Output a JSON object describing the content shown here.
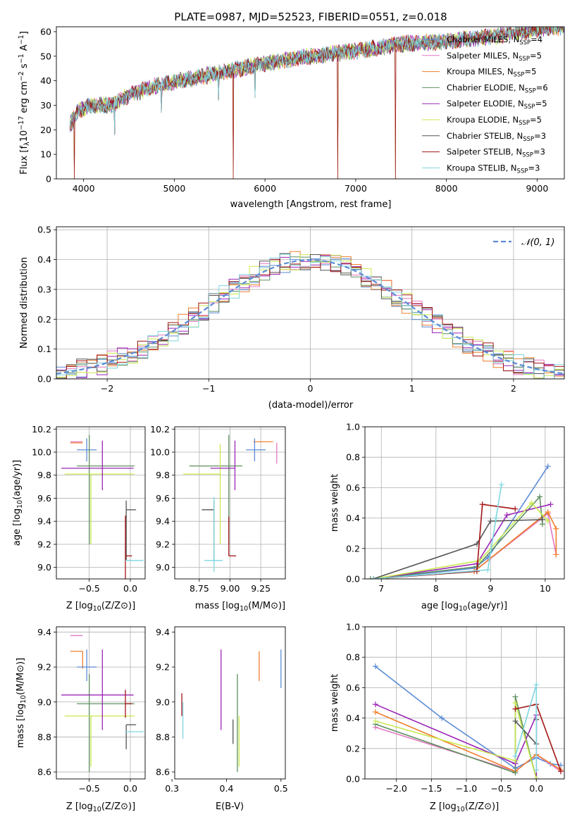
{
  "colors": {
    "chabrier_miles": "#5b8bd5",
    "salpeter_miles": "#e377c2",
    "kroupa_miles": "#ef7f2b",
    "chabrier_elodie": "#5f8f5f",
    "salpeter_elodie": "#9b26b6",
    "kroupa_elodie": "#c9e84f",
    "chabrier_stelib": "#555555",
    "salpeter_stelib": "#a31515",
    "kroupa_stelib": "#7fd6e0",
    "normal": "#5b8bd5"
  },
  "chart_data": [
    {
      "id": "spectrum",
      "type": "line",
      "title": "PLATE=0987, MJD=52523, FIBERID=0551, z=0.018",
      "xlabel": "wavelength [Angstrom, rest frame]",
      "ylabel": "Flux [fλ10⁻¹⁷ erg cm⁻² s⁻¹ A⁻¹]",
      "xlim": [
        3700,
        9300
      ],
      "ylim": [
        0,
        62
      ],
      "xticks": [
        4000,
        5000,
        6000,
        7000,
        8000,
        9000
      ],
      "yticks": [
        0,
        10,
        20,
        30,
        40,
        50,
        60
      ],
      "grid": false,
      "legend_position": "upper-right",
      "series": [
        {
          "name": "Chabrier MILES, N_SSP=4",
          "label_main": "Chabrier MILES, N",
          "label_sub": "SSP",
          "label_end": "=4"
        },
        {
          "name": "Salpeter MILES, N_SSP=5",
          "label_main": "Salpeter MILES, N",
          "label_sub": "SSP",
          "label_end": "=5"
        },
        {
          "name": "Kroupa MILES, N_SSP=5",
          "label_main": "Kroupa MILES, N",
          "label_sub": "SSP",
          "label_end": "=5"
        },
        {
          "name": "Chabrier ELODIE, N_SSP=6",
          "label_main": "Chabrier ELODIE, N",
          "label_sub": "SSP",
          "label_end": "=6"
        },
        {
          "name": "Salpeter ELODIE, N_SSP=5",
          "label_main": "Salpeter ELODIE, N",
          "label_sub": "SSP",
          "label_end": "=5"
        },
        {
          "name": "Kroupa ELODIE, N_SSP=5",
          "label_main": "Kroupa ELODIE, N",
          "label_sub": "SSP",
          "label_end": "=5"
        },
        {
          "name": "Chabrier STELIB, N_SSP=3",
          "label_main": "Chabrier STELIB, N",
          "label_sub": "SSP",
          "label_end": "=3"
        },
        {
          "name": "Salpeter STELIB, N_SSP=3",
          "label_main": "Salpeter STELIB, N",
          "label_sub": "SSP",
          "label_end": "=3"
        },
        {
          "name": "Kroupa STELIB, N_SSP=3",
          "label_main": "Kroupa STELIB, N",
          "label_sub": "SSP",
          "label_end": "=3"
        }
      ],
      "continuum": {
        "x": [
          3850,
          3950,
          4100,
          4300,
          4500,
          4800,
          5200,
          5600,
          6000,
          6500,
          7000,
          7500,
          8000,
          8500,
          9000,
          9300
        ],
        "y": [
          22,
          28,
          30,
          30,
          34,
          38,
          41,
          44,
          47,
          50,
          52,
          55,
          56,
          58,
          61,
          62
        ]
      },
      "dips": [
        {
          "x": 3900,
          "y": 0
        },
        {
          "x": 4340,
          "y": 15
        },
        {
          "x": 4860,
          "y": 24
        },
        {
          "x": 5490,
          "y": 29
        },
        {
          "x": 5650,
          "y": 0
        },
        {
          "x": 5890,
          "y": 30
        },
        {
          "x": 6800,
          "y": 0
        },
        {
          "x": 7440,
          "y": 0
        }
      ]
    },
    {
      "id": "residuals",
      "type": "step",
      "xlabel": "(data-model)/error",
      "ylabel": "Normed distribution",
      "xlim": [
        -2.5,
        2.5
      ],
      "ylim": [
        0,
        0.51
      ],
      "xticks": [
        -2,
        -1,
        0,
        1,
        2
      ],
      "yticks": [
        0.0,
        0.1,
        0.2,
        0.3,
        0.4,
        0.5
      ],
      "grid": true,
      "legend_position": "upper-right",
      "legend": "N(0,1)",
      "normal_curve": {
        "mean": 0,
        "sigma": 1
      }
    },
    {
      "id": "age_vs_Z",
      "type": "errorbar",
      "xlabel_main": "Z [log",
      "xlabel_sub": "10",
      "xlabel_end": "(Z/Z⊙)]",
      "ylabel": "age  [log10(age/yr)]",
      "xlim": [
        -0.9,
        0.18
      ],
      "ylim": [
        8.9,
        10.22
      ],
      "xticks": [
        -0.5,
        0.0
      ],
      "yticks": [
        9.0,
        9.2,
        9.4,
        9.6,
        9.8,
        10.0,
        10.2
      ],
      "grid": true,
      "points": [
        {
          "s": "salpeter_miles",
          "x": -0.58,
          "xerr": [
            0.15,
            0.0
          ],
          "y": 10.09,
          "yerr": [
            0.0,
            0.0
          ]
        },
        {
          "s": "kroupa_miles",
          "x": -0.58,
          "xerr": [
            0.15,
            0.0
          ],
          "y": 10.08,
          "yerr": [
            0.0,
            0.0
          ]
        },
        {
          "s": "chabrier_miles",
          "x": -0.53,
          "xerr": [
            0.12,
            0.12
          ],
          "y": 10.02,
          "yerr": [
            0.1,
            0.1
          ]
        },
        {
          "s": "chabrier_elodie",
          "x": -0.5,
          "xerr": [
            0.15,
            0.55
          ],
          "y": 9.88,
          "yerr": [
            0.68,
            0.27
          ]
        },
        {
          "s": "kroupa_elodie",
          "x": -0.48,
          "xerr": [
            0.32,
            0.53
          ],
          "y": 9.81,
          "yerr": [
            0.61,
            0.0
          ]
        },
        {
          "s": "salpeter_elodie",
          "x": -0.34,
          "xerr": [
            0.5,
            0.38
          ],
          "y": 9.86,
          "yerr": [
            0.19,
            0.24
          ]
        },
        {
          "s": "chabrier_stelib",
          "x": -0.05,
          "xerr": [
            0.0,
            0.12
          ],
          "y": 9.5,
          "yerr": [
            0.44,
            0.08
          ]
        },
        {
          "s": "salpeter_stelib",
          "x": -0.06,
          "xerr": [
            0.0,
            0.08
          ],
          "y": 9.1,
          "yerr": [
            0.2,
            0.35
          ]
        },
        {
          "s": "kroupa_stelib",
          "x": 0.04,
          "xerr": [
            0.1,
            0.12
          ],
          "y": 9.06,
          "yerr": [
            0.0,
            0.0
          ]
        }
      ]
    },
    {
      "id": "age_vs_mass",
      "type": "errorbar",
      "xlabel_main": "mass [log",
      "xlabel_sub": "10",
      "xlabel_end": "(M/M⊙)]",
      "xlim": [
        8.55,
        9.45
      ],
      "ylim": [
        8.9,
        10.22
      ],
      "xticks": [
        8.75,
        9.0,
        9.25
      ],
      "yticks": [
        9.0,
        9.2,
        9.4,
        9.6,
        9.8,
        10.0,
        10.2
      ],
      "grid": true,
      "points": [
        {
          "s": "salpeter_miles",
          "x": 9.38,
          "xerr": [
            0.0,
            0.0
          ],
          "y": 10.08,
          "yerr": [
            0.18,
            0.0
          ]
        },
        {
          "s": "kroupa_miles",
          "x": 9.29,
          "xerr": [
            0.1,
            0.06
          ],
          "y": 10.09,
          "yerr": [
            0.0,
            0.0
          ]
        },
        {
          "s": "chabrier_miles",
          "x": 9.2,
          "xerr": [
            0.07,
            0.09
          ],
          "y": 10.02,
          "yerr": [
            0.1,
            0.1
          ]
        },
        {
          "s": "chabrier_elodie",
          "x": 8.99,
          "xerr": [
            0.32,
            0.11
          ],
          "y": 9.88,
          "yerr": [
            0.68,
            0.27
          ]
        },
        {
          "s": "kroupa_elodie",
          "x": 8.92,
          "xerr": [
            0.3,
            0.0
          ],
          "y": 9.81,
          "yerr": [
            0.61,
            0.26
          ]
        },
        {
          "s": "salpeter_elodie",
          "x": 9.04,
          "xerr": [
            0.2,
            0.0
          ],
          "y": 9.86,
          "yerr": [
            0.19,
            0.24
          ]
        },
        {
          "s": "chabrier_stelib",
          "x": 8.87,
          "xerr": [
            0.1,
            0.0
          ],
          "y": 9.5,
          "yerr": [
            0.44,
            0.08
          ]
        },
        {
          "s": "salpeter_stelib",
          "x": 8.99,
          "xerr": [
            0.0,
            0.06
          ],
          "y": 9.1,
          "yerr": [
            0.0,
            0.34
          ]
        },
        {
          "s": "kroupa_stelib",
          "x": 8.87,
          "xerr": [
            0.08,
            0.07
          ],
          "y": 9.06,
          "yerr": [
            0.1,
            0.55
          ]
        }
      ]
    },
    {
      "id": "weight_vs_age",
      "type": "line",
      "xlabel": "age  [log10(age/yr)]",
      "ylabel": "mass weight",
      "xlim": [
        6.7,
        10.35
      ],
      "ylim": [
        0.0,
        1.0
      ],
      "xticks": [
        7,
        8,
        9,
        10
      ],
      "yticks": [
        0.0,
        0.2,
        0.4,
        0.6,
        0.8,
        1.0
      ],
      "grid": true,
      "series": [
        {
          "s": "chabrier_miles",
          "x": [
            6.85,
            8.7,
            8.95,
            10.05
          ],
          "y": [
            0.0,
            0.07,
            0.14,
            0.74
          ]
        },
        {
          "s": "salpeter_miles",
          "x": [
            6.85,
            8.7,
            10.05,
            10.2
          ],
          "y": [
            0.0,
            0.05,
            0.43,
            0.16
          ]
        },
        {
          "s": "kroupa_miles",
          "x": [
            6.85,
            8.7,
            10.05,
            10.2,
            10.2
          ],
          "y": [
            0.0,
            0.05,
            0.44,
            0.33,
            0.16
          ]
        },
        {
          "s": "chabrier_elodie",
          "x": [
            6.8,
            8.75,
            9.9,
            9.95
          ],
          "y": [
            0.0,
            0.08,
            0.54,
            0.36
          ]
        },
        {
          "s": "salpeter_elodie",
          "x": [
            6.85,
            8.75,
            9.3,
            10.1
          ],
          "y": [
            0.0,
            0.1,
            0.42,
            0.49
          ]
        },
        {
          "s": "kroupa_elodie",
          "x": [
            6.85,
            8.8,
            9.75,
            10.05
          ],
          "y": [
            0.0,
            0.12,
            0.5,
            0.38
          ]
        },
        {
          "s": "chabrier_stelib",
          "x": [
            6.85,
            8.75,
            9.0,
            9.95
          ],
          "y": [
            0.0,
            0.23,
            0.38,
            0.39
          ]
        },
        {
          "s": "salpeter_stelib",
          "x": [
            6.85,
            8.75,
            8.85,
            9.45
          ],
          "y": [
            0.0,
            0.05,
            0.49,
            0.46
          ]
        },
        {
          "s": "kroupa_stelib",
          "x": [
            6.85,
            8.95,
            9.1,
            9.2
          ],
          "y": [
            0.0,
            0.06,
            0.4,
            0.62
          ]
        }
      ]
    },
    {
      "id": "mass_vs_Z",
      "type": "errorbar",
      "xlabel_main": "Z [log",
      "xlabel_sub": "10",
      "xlabel_end": "(Z/Z⊙)]",
      "ylabel": "mass [log10(M/M⊙)]",
      "xlim": [
        -0.9,
        0.18
      ],
      "ylim": [
        8.56,
        9.43
      ],
      "xticks": [
        -0.5,
        0.0
      ],
      "yticks": [
        8.6,
        8.8,
        9.0,
        9.2,
        9.4
      ],
      "grid": true,
      "points": [
        {
          "s": "salpeter_miles",
          "x": -0.58,
          "xerr": [
            0.15,
            0.0
          ],
          "y": 9.38,
          "yerr": [
            0.0,
            0.0
          ]
        },
        {
          "s": "kroupa_miles",
          "x": -0.58,
          "xerr": [
            0.15,
            0.0
          ],
          "y": 9.29,
          "yerr": [
            0.1,
            0.0
          ]
        },
        {
          "s": "chabrier_miles",
          "x": -0.53,
          "xerr": [
            0.12,
            0.12
          ],
          "y": 9.2,
          "yerr": [
            0.08,
            0.1
          ]
        },
        {
          "s": "chabrier_elodie",
          "x": -0.5,
          "xerr": [
            0.15,
            0.55
          ],
          "y": 8.99,
          "yerr": [
            0.39,
            0.17
          ]
        },
        {
          "s": "kroupa_elodie",
          "x": -0.48,
          "xerr": [
            0.32,
            0.53
          ],
          "y": 8.92,
          "yerr": [
            0.29,
            0.0
          ]
        },
        {
          "s": "salpeter_elodie",
          "x": -0.34,
          "xerr": [
            0.5,
            0.38
          ],
          "y": 9.04,
          "yerr": [
            0.2,
            0.26
          ]
        },
        {
          "s": "chabrier_stelib",
          "x": -0.05,
          "xerr": [
            0.0,
            0.12
          ],
          "y": 8.87,
          "yerr": [
            0.14,
            0.0
          ]
        },
        {
          "s": "salpeter_stelib",
          "x": -0.06,
          "xerr": [
            0.0,
            0.08
          ],
          "y": 8.99,
          "yerr": [
            0.08,
            0.08
          ]
        },
        {
          "s": "kroupa_stelib",
          "x": 0.04,
          "xerr": [
            0.1,
            0.12
          ],
          "y": 8.83,
          "yerr": [
            0.0,
            0.0
          ]
        }
      ]
    },
    {
      "id": "mass_vs_ebv",
      "type": "errorbar",
      "xlabel": "E(B-V)",
      "xlim": [
        0.305,
        0.508
      ],
      "ylim": [
        8.56,
        9.43
      ],
      "xticks": [
        0.3,
        0.4,
        0.5
      ],
      "yticks": [
        8.6,
        8.8,
        9.0,
        9.2,
        9.4
      ],
      "grid": false,
      "points": [
        {
          "s": "salpeter_stelib",
          "x": 0.318,
          "xerr": [
            0.0,
            0.0
          ],
          "y": 8.99,
          "yerr": [
            0.07,
            0.06
          ]
        },
        {
          "s": "kroupa_stelib",
          "x": 0.32,
          "xerr": [
            0.0,
            0.0
          ],
          "y": 8.83,
          "yerr": [
            0.04,
            0.17
          ]
        },
        {
          "s": "salpeter_elodie",
          "x": 0.39,
          "xerr": [
            0.0,
            0.0
          ],
          "y": 9.04,
          "yerr": [
            0.2,
            0.26
          ]
        },
        {
          "s": "chabrier_stelib",
          "x": 0.412,
          "xerr": [
            0.0,
            0.0
          ],
          "y": 8.87,
          "yerr": [
            0.11,
            0.03
          ]
        },
        {
          "s": "chabrier_elodie",
          "x": 0.42,
          "xerr": [
            0.0,
            0.0
          ],
          "y": 8.99,
          "yerr": [
            0.39,
            0.17
          ]
        },
        {
          "s": "kroupa_elodie",
          "x": 0.423,
          "xerr": [
            0.0,
            0.0
          ],
          "y": 8.92,
          "yerr": [
            0.29,
            0.0
          ]
        },
        {
          "s": "salpeter_miles",
          "x": 0.458,
          "xerr": [
            0.0,
            0.0
          ],
          "y": 9.38,
          "yerr": [
            0.0,
            0.0
          ]
        },
        {
          "s": "kroupa_miles",
          "x": 0.46,
          "xerr": [
            0.0,
            0.0
          ],
          "y": 9.29,
          "yerr": [
            0.17,
            0.0
          ]
        },
        {
          "s": "chabrier_miles",
          "x": 0.5,
          "xerr": [
            0.0,
            0.0
          ],
          "y": 9.2,
          "yerr": [
            0.12,
            0.1
          ]
        }
      ]
    },
    {
      "id": "weight_vs_Z",
      "type": "line",
      "xlabel_main": "Z [log",
      "xlabel_sub": "10",
      "xlabel_end": "(Z/Z⊙)]",
      "ylabel": "mass weight",
      "xlim": [
        -2.45,
        0.4
      ],
      "ylim": [
        0.0,
        1.0
      ],
      "xticks": [
        -2.0,
        -1.5,
        -1.0,
        -0.5,
        0.0
      ],
      "yticks": [
        0.0,
        0.2,
        0.4,
        0.6,
        0.8,
        1.0
      ],
      "grid": true,
      "series": [
        {
          "s": "chabrier_miles",
          "x": [
            -2.3,
            -1.35,
            -0.3,
            0.0,
            0.2,
            0.35
          ],
          "y": [
            0.74,
            0.4,
            0.07,
            0.14,
            0.1,
            0.09
          ]
        },
        {
          "s": "salpeter_miles",
          "x": [
            -2.3,
            -0.3,
            0.0,
            0.35
          ],
          "y": [
            0.34,
            0.05,
            0.16,
            0.05
          ]
        },
        {
          "s": "kroupa_miles",
          "x": [
            -2.3,
            -0.3,
            0.0,
            0.35
          ],
          "y": [
            0.44,
            0.05,
            0.16,
            0.06
          ]
        },
        {
          "s": "chabrier_elodie",
          "x": [
            -2.3,
            -0.3,
            -0.3,
            0.0
          ],
          "y": [
            0.36,
            0.04,
            0.54,
            0.0
          ]
        },
        {
          "s": "salpeter_elodie",
          "x": [
            -2.3,
            -0.3,
            0.0,
            0.0
          ],
          "y": [
            0.49,
            0.1,
            0.42,
            0.0
          ]
        },
        {
          "s": "kroupa_elodie",
          "x": [
            -2.3,
            -0.3,
            -0.3,
            0.0
          ],
          "y": [
            0.38,
            0.12,
            0.5,
            0.0
          ]
        },
        {
          "s": "chabrier_stelib",
          "x": [
            -0.3,
            0.0,
            0.0
          ],
          "y": [
            0.38,
            0.23,
            0.39
          ]
        },
        {
          "s": "salpeter_stelib",
          "x": [
            -0.3,
            0.0,
            0.35
          ],
          "y": [
            0.46,
            0.49,
            0.05
          ]
        },
        {
          "s": "kroupa_stelib",
          "x": [
            -0.3,
            0.0,
            0.0
          ],
          "y": [
            0.15,
            0.62,
            0.06
          ]
        }
      ]
    }
  ]
}
